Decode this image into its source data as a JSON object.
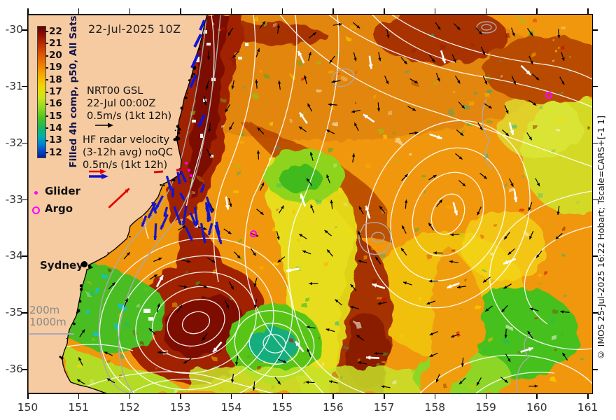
{
  "figure": {
    "title": "22-Jul-2025 10Z",
    "colorbar": {
      "title": "Filled 4h comp, p50, All Sats",
      "ticks": [
        "22",
        "21",
        "20",
        "19",
        "18",
        "17",
        "16",
        "15",
        "14",
        "13",
        "12"
      ]
    },
    "annotations": {
      "nrt_line1": "NRT00 GSL",
      "nrt_line2": "22-Jul 00:00Z",
      "nrt_line3": "0.5m/s (1kt 12h)",
      "hf_line1": "HF radar velocity",
      "hf_line2": "(3-12h avg) noQC",
      "hf_line3": "0.5m/s (1kt 12h)",
      "glider_label": "Glider",
      "argo_label": "Argo",
      "city_label": "Sydney",
      "depth_200": "200m",
      "depth_1000": "1000m"
    },
    "x_axis": {
      "ticks": [
        "150",
        "151",
        "152",
        "153",
        "154",
        "155",
        "156",
        "157",
        "158",
        "159",
        "160",
        "161"
      ]
    },
    "y_axis": {
      "ticks": [
        "-30",
        "-31",
        "-32",
        "-33",
        "-34",
        "-35",
        "-36"
      ]
    },
    "credit": "© IMOS 25-Jul-2025 16:22 Hobart; Tscale=CARS+[-1 1]",
    "colors": {
      "land": "#f6cba2",
      "sst_warm_dark": "#7c1000",
      "sst_warm": "#a02300",
      "sst_orange": "#f0970a",
      "sst_yellow": "#e6e41c",
      "sst_green": "#4cc41e",
      "sst_teal": "#16ad7c",
      "contour_white": "#ffffff",
      "bathy_gray": "#a9a9a9",
      "vector_blue": "#1414cf",
      "vector_red": "#e60000",
      "marker_magenta": "#ff00ff"
    }
  }
}
